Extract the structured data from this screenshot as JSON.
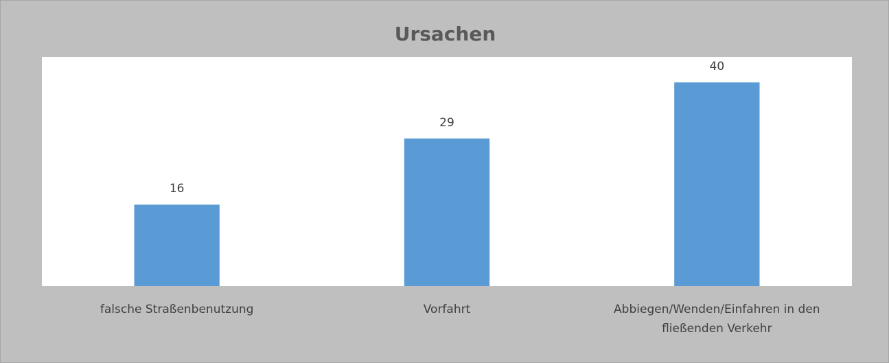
{
  "chart_data": {
    "type": "bar",
    "title": "Ursachen",
    "categories": [
      "falsche Straßenbenutzung",
      "Vorfahrt",
      "Abbiegen/Wenden/Einfahren in den fließenden Verkehr"
    ],
    "values": [
      16,
      29,
      40
    ],
    "color": "#5b9bd5",
    "ylim": [
      0,
      45
    ]
  }
}
